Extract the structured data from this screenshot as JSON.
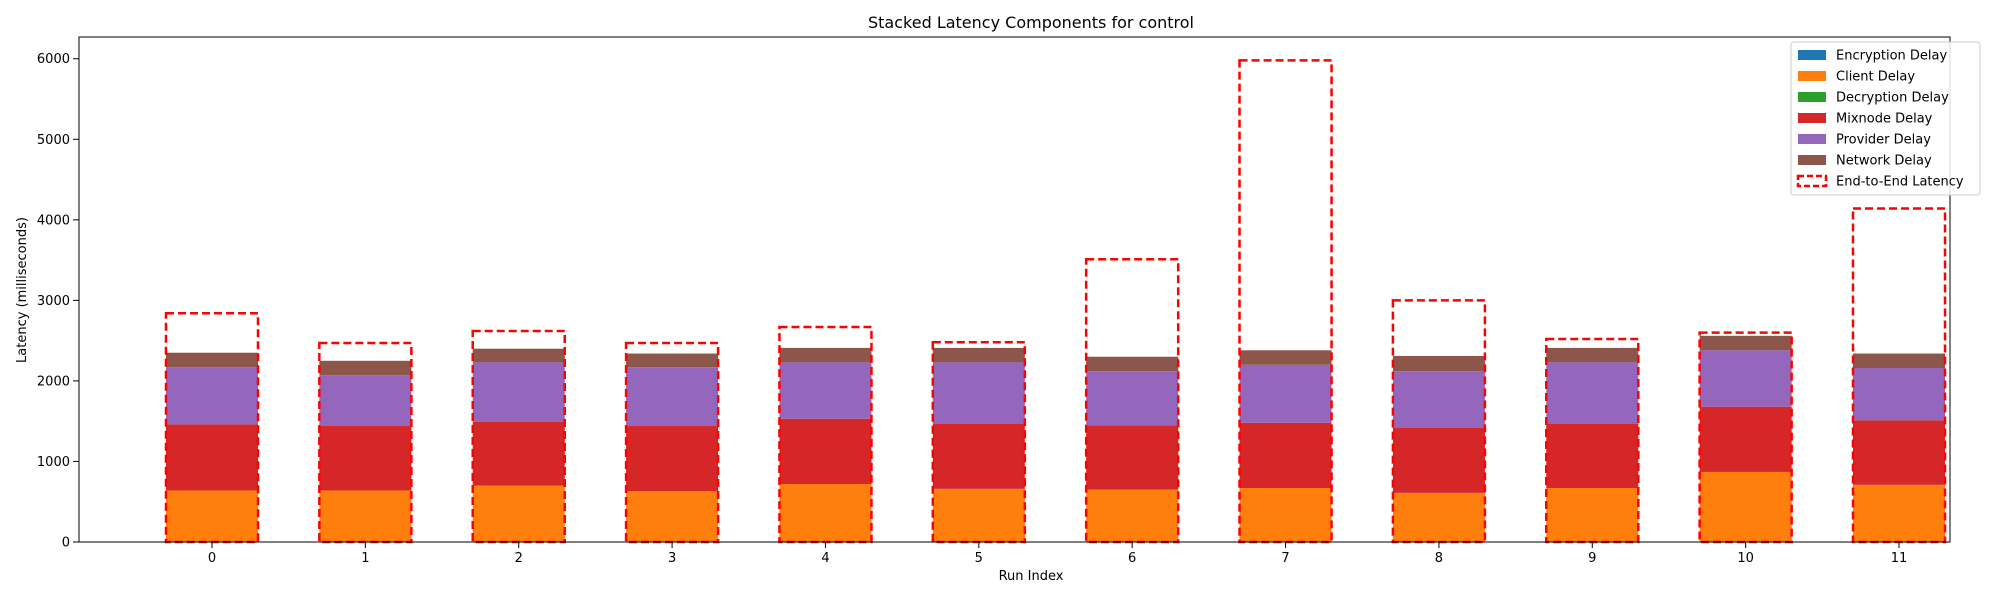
{
  "chart_data": {
    "type": "bar",
    "title": "Stacked Latency Components for control",
    "xlabel": "Run Index",
    "ylabel": "Latency (milliseconds)",
    "ylim": [
      0,
      6270
    ],
    "yticks": [
      0,
      1000,
      2000,
      3000,
      4000,
      5000,
      6000
    ],
    "grid": false,
    "legend_position": "top-right",
    "categories": [
      "0",
      "1",
      "2",
      "3",
      "4",
      "5",
      "6",
      "7",
      "8",
      "9",
      "10",
      "11"
    ],
    "series": [
      {
        "name": "Encryption Delay",
        "color": "#1f77b4",
        "values": [
          0,
          0,
          0,
          0,
          0,
          0,
          0,
          0,
          0,
          0,
          0,
          0
        ]
      },
      {
        "name": "Client Delay",
        "color": "#ff7f0e",
        "values": [
          640,
          640,
          700,
          630,
          720,
          660,
          650,
          670,
          610,
          670,
          870,
          710
        ]
      },
      {
        "name": "Decryption Delay",
        "color": "#2ca02c",
        "values": [
          0,
          0,
          0,
          0,
          0,
          0,
          0,
          0,
          0,
          0,
          0,
          0
        ]
      },
      {
        "name": "Mixnode Delay",
        "color": "#d62728",
        "values": [
          820,
          800,
          790,
          810,
          810,
          810,
          800,
          810,
          810,
          800,
          810,
          800
        ]
      },
      {
        "name": "Provider Delay",
        "color": "#9467bd",
        "values": [
          710,
          630,
          740,
          730,
          700,
          760,
          670,
          720,
          700,
          760,
          700,
          650
        ]
      },
      {
        "name": "Network Delay",
        "color": "#8c564b",
        "values": [
          180,
          180,
          170,
          170,
          180,
          180,
          180,
          180,
          190,
          180,
          180,
          180
        ]
      }
    ],
    "overlay": {
      "name": "End-to-End Latency",
      "color": "#ff0000",
      "style": "dashed",
      "values": [
        2840,
        2470,
        2620,
        2470,
        2670,
        2480,
        3510,
        5980,
        3000,
        2520,
        2600,
        4140
      ]
    }
  }
}
